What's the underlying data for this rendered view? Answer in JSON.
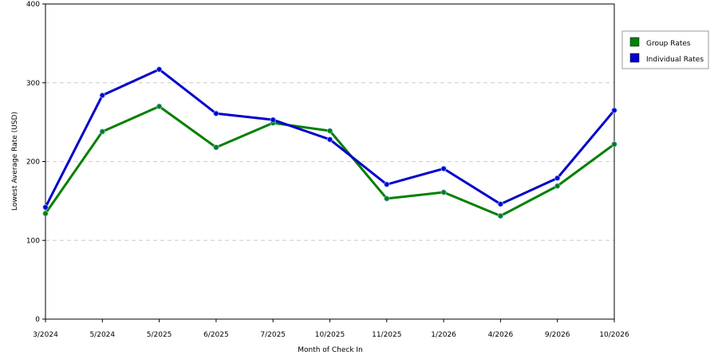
{
  "chart_data": {
    "type": "line",
    "categories": [
      "3/2024",
      "5/2024",
      "5/2025",
      "6/2025",
      "7/2025",
      "10/2025",
      "11/2025",
      "1/2026",
      "4/2026",
      "9/2026",
      "10/2026"
    ],
    "series": [
      {
        "name": "Group Rates",
        "color": "#008000",
        "values": [
          134,
          238,
          270,
          218,
          249,
          239,
          153,
          161,
          131,
          169,
          222
        ]
      },
      {
        "name": "Individual Rates",
        "color": "#0000cc",
        "values": [
          142,
          284,
          317,
          261,
          253,
          228,
          171,
          191,
          146,
          179,
          265
        ]
      }
    ],
    "xlabel": "Month of Check In",
    "ylabel": "Lowest Average Rate (USD)",
    "ylim": [
      0,
      400
    ],
    "yticks": [
      0,
      100,
      200,
      300,
      400
    ],
    "grid": "horizontal-dashed",
    "legend_position": "right"
  }
}
